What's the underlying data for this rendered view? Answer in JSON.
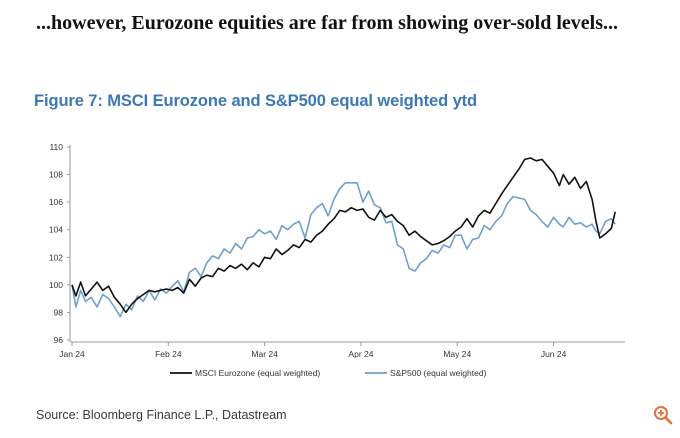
{
  "headline": "...however, Eurozone equities are far from showing over-sold levels...",
  "figure_title": "Figure 7: MSCI Eurozone and S&P500 equal weighted ytd",
  "source": "Source: Bloomberg Finance L.P., Datastream",
  "zoom_icon": "zoom-in-icon",
  "chart_data": {
    "type": "line",
    "title": "Figure 7: MSCI Eurozone and S&P500 equal weighted ytd",
    "xlabel": "",
    "ylabel": "",
    "ylim": [
      96,
      110
    ],
    "yticks": [
      96,
      98,
      100,
      102,
      104,
      106,
      108,
      110
    ],
    "xticks": [
      {
        "label": "Jan 24",
        "pos": 0
      },
      {
        "label": "Feb 24",
        "pos": 1
      },
      {
        "label": "Mar 24",
        "pos": 2
      },
      {
        "label": "Apr 24",
        "pos": 3
      },
      {
        "label": "May 24",
        "pos": 4
      },
      {
        "label": "Jun 24",
        "pos": 5
      }
    ],
    "xlim": [
      0,
      5.7
    ],
    "grid": false,
    "legend_position": "bottom",
    "series": [
      {
        "name": "MSCI Eurozone (equal weighted)",
        "color": "#111111",
        "points": [
          [
            0.0,
            100.0
          ],
          [
            0.04,
            99.2
          ],
          [
            0.09,
            100.2
          ],
          [
            0.14,
            99.2
          ],
          [
            0.2,
            99.7
          ],
          [
            0.26,
            100.2
          ],
          [
            0.32,
            99.6
          ],
          [
            0.38,
            99.9
          ],
          [
            0.44,
            99.1
          ],
          [
            0.5,
            98.6
          ],
          [
            0.56,
            98.0
          ],
          [
            0.62,
            98.6
          ],
          [
            0.68,
            99.0
          ],
          [
            0.74,
            99.3
          ],
          [
            0.8,
            99.6
          ],
          [
            0.86,
            99.5
          ],
          [
            0.92,
            99.6
          ],
          [
            0.98,
            99.7
          ],
          [
            1.04,
            99.6
          ],
          [
            1.1,
            99.8
          ],
          [
            1.16,
            99.4
          ],
          [
            1.22,
            100.4
          ],
          [
            1.28,
            99.9
          ],
          [
            1.34,
            100.5
          ],
          [
            1.4,
            100.7
          ],
          [
            1.46,
            100.6
          ],
          [
            1.52,
            101.2
          ],
          [
            1.58,
            101.0
          ],
          [
            1.64,
            101.4
          ],
          [
            1.7,
            101.2
          ],
          [
            1.76,
            101.5
          ],
          [
            1.82,
            101.1
          ],
          [
            1.88,
            101.6
          ],
          [
            1.94,
            101.3
          ],
          [
            2.0,
            102.0
          ],
          [
            2.06,
            101.9
          ],
          [
            2.12,
            102.6
          ],
          [
            2.18,
            102.2
          ],
          [
            2.24,
            102.5
          ],
          [
            2.3,
            102.9
          ],
          [
            2.36,
            102.7
          ],
          [
            2.42,
            103.3
          ],
          [
            2.48,
            103.1
          ],
          [
            2.54,
            103.6
          ],
          [
            2.6,
            103.9
          ],
          [
            2.66,
            104.4
          ],
          [
            2.72,
            104.8
          ],
          [
            2.78,
            105.4
          ],
          [
            2.84,
            105.3
          ],
          [
            2.9,
            105.6
          ],
          [
            2.96,
            105.4
          ],
          [
            3.02,
            105.5
          ],
          [
            3.08,
            104.9
          ],
          [
            3.14,
            104.7
          ],
          [
            3.2,
            105.4
          ],
          [
            3.26,
            104.9
          ],
          [
            3.32,
            105.1
          ],
          [
            3.38,
            104.6
          ],
          [
            3.44,
            104.3
          ],
          [
            3.5,
            103.6
          ],
          [
            3.56,
            103.9
          ],
          [
            3.62,
            103.5
          ],
          [
            3.68,
            103.2
          ],
          [
            3.74,
            102.9
          ],
          [
            3.8,
            103.0
          ],
          [
            3.86,
            103.2
          ],
          [
            3.92,
            103.5
          ],
          [
            3.98,
            103.9
          ],
          [
            4.04,
            104.2
          ],
          [
            4.1,
            104.8
          ],
          [
            4.16,
            104.2
          ],
          [
            4.22,
            105.0
          ],
          [
            4.28,
            105.4
          ],
          [
            4.34,
            105.2
          ],
          [
            4.4,
            105.9
          ],
          [
            4.46,
            106.6
          ],
          [
            4.52,
            107.2
          ],
          [
            4.58,
            107.8
          ],
          [
            4.64,
            108.4
          ],
          [
            4.7,
            109.1
          ],
          [
            4.76,
            109.2
          ],
          [
            4.82,
            109.0
          ],
          [
            4.88,
            109.1
          ],
          [
            4.94,
            108.6
          ],
          [
            5.0,
            108.1
          ],
          [
            5.06,
            107.2
          ],
          [
            5.1,
            108.0
          ],
          [
            5.16,
            107.3
          ],
          [
            5.22,
            107.8
          ],
          [
            5.28,
            107.0
          ],
          [
            5.34,
            107.5
          ],
          [
            5.4,
            106.2
          ],
          [
            5.44,
            104.6
          ],
          [
            5.48,
            103.4
          ],
          [
            5.54,
            103.7
          ],
          [
            5.6,
            104.1
          ],
          [
            5.64,
            105.3
          ]
        ]
      },
      {
        "name": "S&P500 (equal weighted)",
        "color": "#6f9fcf",
        "points": [
          [
            0.0,
            100.0
          ],
          [
            0.04,
            98.4
          ],
          [
            0.09,
            99.6
          ],
          [
            0.14,
            98.8
          ],
          [
            0.2,
            99.1
          ],
          [
            0.26,
            98.4
          ],
          [
            0.32,
            99.3
          ],
          [
            0.38,
            99.0
          ],
          [
            0.44,
            98.4
          ],
          [
            0.5,
            97.7
          ],
          [
            0.56,
            98.6
          ],
          [
            0.62,
            98.2
          ],
          [
            0.68,
            99.2
          ],
          [
            0.74,
            98.8
          ],
          [
            0.8,
            99.6
          ],
          [
            0.86,
            98.9
          ],
          [
            0.92,
            99.7
          ],
          [
            0.98,
            99.4
          ],
          [
            1.04,
            99.9
          ],
          [
            1.1,
            100.3
          ],
          [
            1.16,
            99.5
          ],
          [
            1.22,
            100.9
          ],
          [
            1.28,
            101.2
          ],
          [
            1.34,
            100.6
          ],
          [
            1.4,
            101.6
          ],
          [
            1.46,
            102.1
          ],
          [
            1.52,
            101.9
          ],
          [
            1.58,
            102.6
          ],
          [
            1.64,
            102.3
          ],
          [
            1.7,
            103.0
          ],
          [
            1.76,
            102.6
          ],
          [
            1.82,
            103.4
          ],
          [
            1.88,
            103.5
          ],
          [
            1.94,
            104.0
          ],
          [
            2.0,
            103.7
          ],
          [
            2.06,
            103.9
          ],
          [
            2.12,
            103.3
          ],
          [
            2.18,
            104.3
          ],
          [
            2.24,
            104.0
          ],
          [
            2.3,
            104.4
          ],
          [
            2.36,
            104.6
          ],
          [
            2.42,
            103.4
          ],
          [
            2.48,
            105.1
          ],
          [
            2.54,
            105.6
          ],
          [
            2.6,
            105.9
          ],
          [
            2.66,
            105.0
          ],
          [
            2.72,
            106.2
          ],
          [
            2.78,
            107.0
          ],
          [
            2.84,
            107.4
          ],
          [
            2.9,
            107.4
          ],
          [
            2.96,
            107.4
          ],
          [
            3.02,
            106.0
          ],
          [
            3.08,
            106.8
          ],
          [
            3.14,
            105.8
          ],
          [
            3.2,
            105.6
          ],
          [
            3.26,
            104.5
          ],
          [
            3.32,
            104.6
          ],
          [
            3.38,
            102.9
          ],
          [
            3.44,
            102.6
          ],
          [
            3.5,
            101.2
          ],
          [
            3.56,
            101.0
          ],
          [
            3.62,
            101.6
          ],
          [
            3.68,
            101.9
          ],
          [
            3.74,
            102.5
          ],
          [
            3.8,
            102.3
          ],
          [
            3.86,
            102.9
          ],
          [
            3.92,
            102.7
          ],
          [
            3.98,
            103.6
          ],
          [
            4.04,
            103.6
          ],
          [
            4.1,
            102.6
          ],
          [
            4.16,
            103.3
          ],
          [
            4.22,
            103.4
          ],
          [
            4.28,
            104.3
          ],
          [
            4.34,
            104.0
          ],
          [
            4.4,
            104.6
          ],
          [
            4.46,
            105.0
          ],
          [
            4.52,
            105.9
          ],
          [
            4.58,
            106.4
          ],
          [
            4.64,
            106.3
          ],
          [
            4.7,
            106.2
          ],
          [
            4.76,
            105.4
          ],
          [
            4.82,
            105.1
          ],
          [
            4.88,
            104.6
          ],
          [
            4.94,
            104.2
          ],
          [
            5.0,
            104.9
          ],
          [
            5.06,
            104.4
          ],
          [
            5.1,
            104.2
          ],
          [
            5.16,
            104.9
          ],
          [
            5.22,
            104.4
          ],
          [
            5.28,
            104.5
          ],
          [
            5.34,
            104.2
          ],
          [
            5.4,
            104.4
          ],
          [
            5.44,
            103.9
          ],
          [
            5.48,
            103.7
          ],
          [
            5.54,
            104.6
          ],
          [
            5.6,
            104.8
          ],
          [
            5.64,
            104.4
          ]
        ]
      }
    ]
  }
}
